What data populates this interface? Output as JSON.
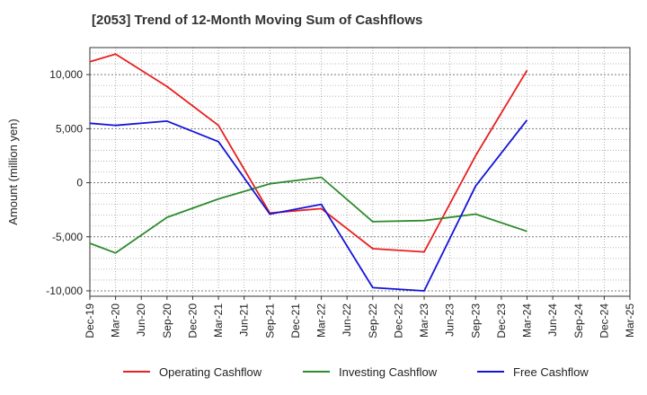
{
  "chart_data": {
    "type": "line",
    "title": "[2053]  Trend of 12-Month Moving Sum of Cashflows",
    "ylabel": "Amount (million yen)",
    "xlabel": "",
    "categories": [
      "Dec-19",
      "Mar-20",
      "Jun-20",
      "Sep-20",
      "Dec-20",
      "Mar-21",
      "Jun-21",
      "Sep-21",
      "Dec-21",
      "Mar-22",
      "Jun-22",
      "Sep-22",
      "Dec-22",
      "Mar-23",
      "Jun-23",
      "Sep-23",
      "Dec-23",
      "Mar-24",
      "Jun-24",
      "Sep-24",
      "Dec-24",
      "Mar-25"
    ],
    "ylim": [
      -10500,
      12500
    ],
    "yticks": [
      -10000,
      -5000,
      0,
      5000,
      10000
    ],
    "ytick_labels": [
      "-10,000",
      "-5,000",
      "0",
      "5,000",
      "10,000"
    ],
    "grid": true,
    "legend_position": "bottom",
    "series": [
      {
        "name": "Operating Cashflow",
        "color": "#e8201f",
        "values": [
          11200,
          11900,
          null,
          8900,
          null,
          5300,
          null,
          -2800,
          null,
          -2400,
          null,
          -6100,
          null,
          -6400,
          null,
          2500,
          null,
          10400,
          null,
          null,
          null,
          null
        ]
      },
      {
        "name": "Investing Cashflow",
        "color": "#2e8b2e",
        "values": [
          -5600,
          -6500,
          null,
          -3200,
          null,
          -1500,
          null,
          -100,
          null,
          500,
          null,
          -3600,
          null,
          -3500,
          null,
          -2900,
          null,
          -4500,
          null,
          null,
          null,
          null
        ]
      },
      {
        "name": "Free Cashflow",
        "color": "#1414d8",
        "values": [
          5500,
          5300,
          null,
          5700,
          null,
          3800,
          null,
          -2900,
          null,
          -2000,
          null,
          -9700,
          null,
          -10000,
          null,
          -300,
          null,
          5800,
          null,
          null,
          null,
          null
        ]
      }
    ]
  }
}
